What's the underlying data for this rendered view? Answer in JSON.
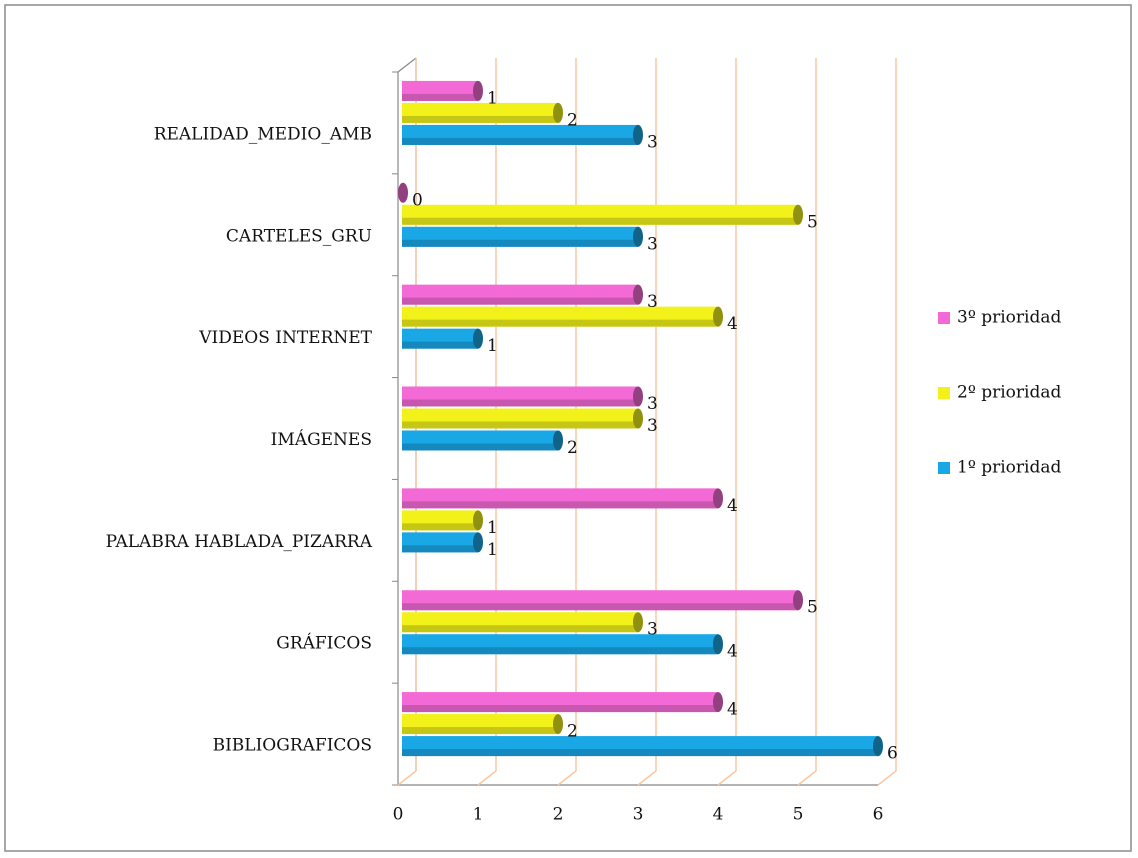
{
  "chart_data": {
    "type": "bar",
    "orientation": "horizontal",
    "three_d": true,
    "categories": [
      "REALIDAD_MEDIO_AMB",
      "CARTELES_GRU",
      "VIDEOS INTERNET",
      "IMÁGENES",
      "PALABRA HABLADA_PIZARRA",
      "GRÁFICOS",
      "BIBLIOGRAFICOS"
    ],
    "series": [
      {
        "name": "1º prioridad",
        "color": "#1aa7e6",
        "values": [
          3,
          3,
          1,
          2,
          1,
          4,
          6
        ]
      },
      {
        "name": "2º prioridad",
        "color": "#f2f21a",
        "values": [
          2,
          5,
          4,
          3,
          1,
          3,
          2
        ]
      },
      {
        "name": "3º prioridad",
        "color": "#f36ad6",
        "values": [
          1,
          0,
          3,
          3,
          4,
          5,
          4
        ]
      }
    ],
    "xlim": [
      0,
      6
    ],
    "xticks": [
      0,
      1,
      2,
      3,
      4,
      5,
      6
    ],
    "grid": true,
    "legend": "right"
  }
}
